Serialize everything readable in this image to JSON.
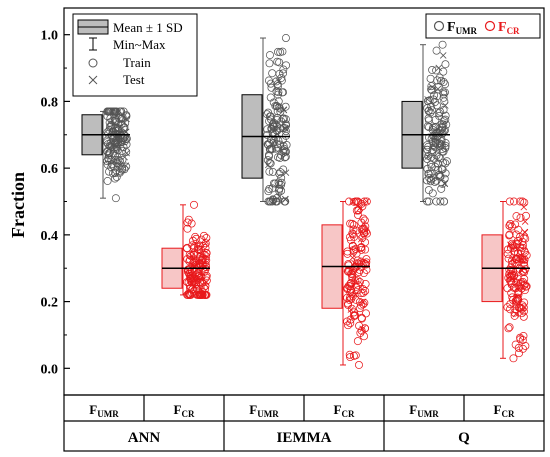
{
  "chart_data": {
    "type": "box-scatter",
    "ylabel": "Fraction",
    "ylim": [
      -0.08,
      1.08
    ],
    "yticks": [
      0.0,
      0.2,
      0.4,
      0.6,
      0.8,
      1.0
    ],
    "ytick_labels": [
      "0.0",
      "0.2",
      "0.4",
      "0.6",
      "0.8",
      "1.0"
    ],
    "groups": [
      "ANN",
      "IEMMA",
      "Q"
    ],
    "legend_stats": {
      "mean_sd": "Mean ± 1 SD",
      "min_max": "Min~Max",
      "train": "Train",
      "test": "Test"
    },
    "legend_series": [
      {
        "name": "F",
        "sub": "UMR",
        "color": "#555555"
      },
      {
        "name": "F",
        "sub": "CR",
        "color": "#e8191c"
      }
    ],
    "categories": [
      {
        "group": "ANN",
        "label": "F",
        "sub": "UMR",
        "series": "UMR",
        "mean": 0.7,
        "sd_low": 0.64,
        "sd_high": 0.76,
        "min": 0.51,
        "max": 0.77
      },
      {
        "group": "ANN",
        "label": "F",
        "sub": "CR",
        "series": "CR",
        "mean": 0.3,
        "sd_low": 0.24,
        "sd_high": 0.36,
        "min": 0.22,
        "max": 0.49
      },
      {
        "group": "IEMMA",
        "label": "F",
        "sub": "UMR",
        "series": "UMR",
        "mean": 0.695,
        "sd_low": 0.57,
        "sd_high": 0.82,
        "min": 0.5,
        "max": 0.99
      },
      {
        "group": "IEMMA",
        "label": "F",
        "sub": "CR",
        "series": "CR",
        "mean": 0.305,
        "sd_low": 0.18,
        "sd_high": 0.43,
        "min": 0.01,
        "max": 0.5
      },
      {
        "group": "Q",
        "label": "F",
        "sub": "UMR",
        "series": "UMR",
        "mean": 0.7,
        "sd_low": 0.6,
        "sd_high": 0.8,
        "min": 0.5,
        "max": 0.97
      },
      {
        "group": "Q",
        "label": "F",
        "sub": "CR",
        "series": "CR",
        "mean": 0.3,
        "sd_low": 0.2,
        "sd_high": 0.4,
        "min": 0.03,
        "max": 0.5
      }
    ],
    "colors": {
      "umr_box": "#bdbdbd",
      "umr_marker": "#555555",
      "cr_box": "#f7c6c6",
      "cr_marker": "#e8191c",
      "axis": "#000000"
    },
    "grid": false
  }
}
